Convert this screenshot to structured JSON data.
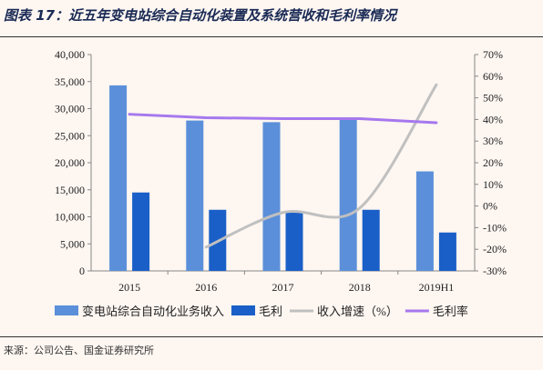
{
  "title": "图表 17：近五年变电站综合自动化装置及系统营收和毛利率情况",
  "source": "来源：公司公告、国金证券研究所",
  "chart_data": {
    "type": "bar",
    "categories": [
      "2015",
      "2016",
      "2017",
      "2018",
      "2019H1"
    ],
    "series": [
      {
        "name": "变电站综合自动化业务收入",
        "kind": "bar",
        "axis": "left",
        "color": "#5b8fd9",
        "values": [
          34300,
          27800,
          27500,
          28200,
          18400
        ]
      },
      {
        "name": "毛利",
        "kind": "bar",
        "axis": "left",
        "color": "#1a5fc8",
        "values": [
          14500,
          11300,
          11100,
          11300,
          7100
        ]
      },
      {
        "name": "收入增速（%）",
        "kind": "line",
        "smooth": true,
        "axis": "right",
        "color": "#c0c0c0",
        "values": [
          null,
          -19,
          -3,
          -1,
          56
        ]
      },
      {
        "name": "毛利率",
        "kind": "line",
        "axis": "right",
        "color": "#a678ee",
        "values": [
          42.4,
          40.8,
          40.4,
          40.4,
          38.5
        ]
      }
    ],
    "y_left": {
      "min": 0,
      "max": 40000,
      "step": 5000,
      "ticks": [
        "0",
        "5,000",
        "10,000",
        "15,000",
        "20,000",
        "25,000",
        "30,000",
        "35,000",
        "40,000"
      ]
    },
    "y_right": {
      "min": -30,
      "max": 70,
      "step": 10,
      "ticks": [
        "-30%",
        "-20%",
        "-10%",
        "0%",
        "10%",
        "20%",
        "30%",
        "40%",
        "50%",
        "60%",
        "70%"
      ]
    },
    "grid": false,
    "legend": "bottom"
  }
}
